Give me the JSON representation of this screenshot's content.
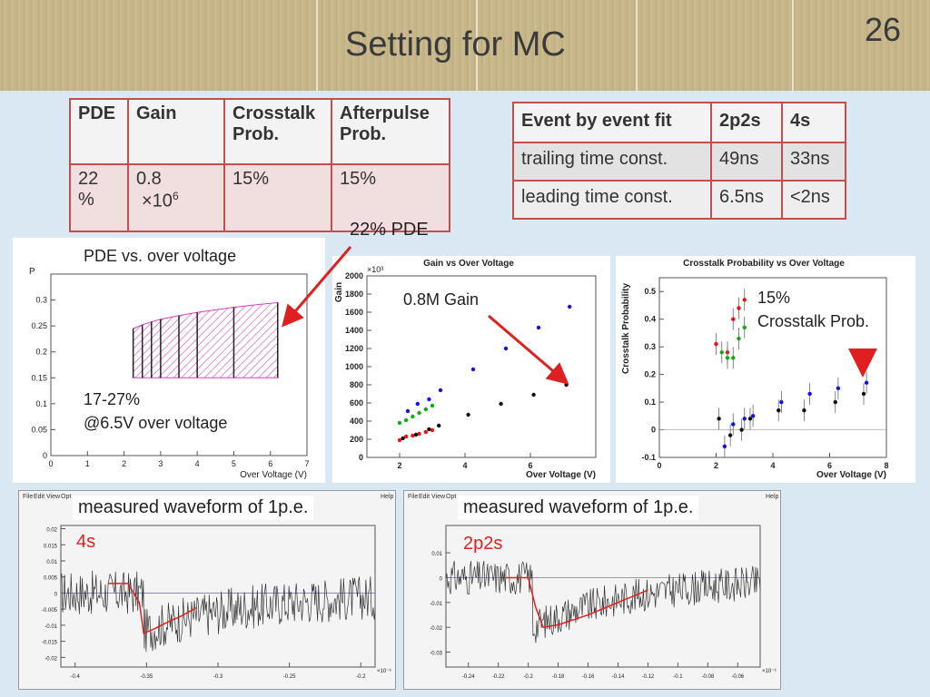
{
  "slide": {
    "title": "Setting for MC",
    "page_number": "26"
  },
  "param_table": {
    "headers": [
      "PDE",
      "Gain",
      "Crosstalk Prob.",
      "Afterpulse Prob."
    ],
    "values": {
      "pde_1": "22",
      "pde_2": "%",
      "gain_1": "0.8",
      "gain_2": "×10",
      "gain_exp": "6",
      "crosstalk": "15%",
      "afterpulse": "15%"
    }
  },
  "fit_table": {
    "headers": [
      "Event by event fit",
      "2p2s",
      "4s"
    ],
    "rows": [
      [
        "trailing time const.",
        "49ns",
        "33ns"
      ],
      [
        "leading time const.",
        "6.5ns",
        "<2ns"
      ]
    ]
  },
  "annotations": {
    "pde_note": "22% PDE",
    "pde_caption": "PDE vs. over voltage",
    "pde_range_1": "17-27%",
    "pde_range_2": "@6.5V over voltage",
    "gain_note": "0.8M Gain",
    "crosstalk_note_1": "15%",
    "crosstalk_note_2": "Crosstalk Prob.",
    "wave1_caption": "measured waveform of 1p.e.",
    "wave1_tag": "4s",
    "wave2_caption": "measured waveform of 1p.e.",
    "wave2_tag": "2p2s"
  },
  "colors": {
    "accent_red": "#e02020",
    "table_border": "#c0504d",
    "pde_hatch": "#d040c0"
  },
  "window_menu": {
    "items": [
      "File",
      "Edit",
      "View",
      "Opt",
      "Help"
    ]
  },
  "chart_data": [
    {
      "type": "scatter",
      "title": "",
      "xlabel": "Over Voltage (V)",
      "ylabel": "P",
      "xlim": [
        0,
        7
      ],
      "ylim": [
        0,
        0.35
      ],
      "xticks": [
        0,
        1,
        2,
        3,
        4,
        5,
        6,
        7
      ],
      "yticks": [
        0,
        0.05,
        0.1,
        0.15,
        0.2,
        0.25,
        0.3
      ],
      "band": {
        "x": [
          2.25,
          2.5,
          2.75,
          3.0,
          3.5,
          4.0,
          4.5,
          5.0,
          5.5,
          6.2
        ],
        "upper": [
          0.245,
          0.252,
          0.258,
          0.263,
          0.27,
          0.276,
          0.281,
          0.286,
          0.29,
          0.295
        ],
        "lower": [
          0.15,
          0.15,
          0.15,
          0.15,
          0.15,
          0.15,
          0.15,
          0.15,
          0.15,
          0.15
        ]
      },
      "verticals": [
        2.25,
        2.5,
        2.75,
        3.0,
        3.5,
        4.0,
        5.0,
        6.2
      ]
    },
    {
      "type": "scatter",
      "title": "Gain vs Over Voltage",
      "xlabel": "Over Voltage (V)",
      "ylabel": "Gain",
      "y_multiplier": "×10³",
      "xlim": [
        1,
        8
      ],
      "ylim": [
        0,
        2000
      ],
      "xticks": [
        2,
        4,
        6
      ],
      "yticks": [
        0,
        200,
        400,
        600,
        800,
        1000,
        1200,
        1400,
        1600,
        1800,
        2000
      ],
      "series": [
        {
          "color": "#ee1111",
          "x": [
            2.0,
            2.2,
            2.4,
            2.6,
            2.8,
            3.0
          ],
          "y": [
            190,
            230,
            240,
            260,
            280,
            300
          ]
        },
        {
          "color": "#11aa11",
          "x": [
            2.0,
            2.2,
            2.4,
            2.6,
            2.8,
            3.0
          ],
          "y": [
            380,
            410,
            450,
            490,
            530,
            570
          ]
        },
        {
          "color": "#1111ee",
          "x": [
            2.25,
            2.55,
            2.9,
            3.25,
            4.25,
            5.25,
            6.25,
            7.2
          ],
          "y": [
            510,
            590,
            640,
            740,
            970,
            1200,
            1430,
            1660
          ]
        },
        {
          "color": "#111111",
          "x": [
            2.1,
            2.5,
            2.9,
            3.2,
            4.1,
            5.1,
            6.1,
            7.1
          ],
          "y": [
            210,
            250,
            310,
            350,
            470,
            590,
            690,
            800
          ]
        }
      ]
    },
    {
      "type": "scatter",
      "title": "Crosstalk Probability vs Over Voltage",
      "xlabel": "Over Voltage (V)",
      "ylabel": "Crosstalk Probability",
      "xlim": [
        0,
        8
      ],
      "ylim": [
        -0.1,
        0.55
      ],
      "xticks": [
        0,
        2,
        4,
        6,
        8
      ],
      "yticks": [
        -0.1,
        0,
        0.1,
        0.2,
        0.3,
        0.4,
        0.5
      ],
      "series": [
        {
          "color": "#ee1111",
          "x": [
            2.0,
            2.4,
            2.6,
            2.8,
            3.0
          ],
          "y": [
            0.31,
            0.28,
            0.4,
            0.44,
            0.47
          ]
        },
        {
          "color": "#11aa11",
          "x": [
            2.2,
            2.4,
            2.6,
            2.8,
            3.0
          ],
          "y": [
            0.28,
            0.26,
            0.26,
            0.33,
            0.37
          ]
        },
        {
          "color": "#1111ee",
          "x": [
            2.3,
            2.6,
            3.0,
            3.3,
            4.3,
            5.3,
            6.3,
            7.3
          ],
          "y": [
            -0.06,
            0.02,
            0.04,
            0.05,
            0.1,
            0.13,
            0.15,
            0.17
          ]
        },
        {
          "color": "#111111",
          "x": [
            2.1,
            2.5,
            2.9,
            3.2,
            4.2,
            5.1,
            6.2,
            7.2
          ],
          "y": [
            0.04,
            -0.02,
            0.0,
            0.04,
            0.07,
            0.07,
            0.1,
            0.13
          ]
        }
      ]
    },
    {
      "type": "line",
      "title": "",
      "xlabel": "",
      "ylabel": "",
      "xlim": [
        -0.41,
        -0.19
      ],
      "ylim": [
        -0.023,
        0.021
      ],
      "x_multiplier": "×10⁻⁶",
      "xticks": [
        -0.4,
        -0.35,
        -0.3,
        -0.25,
        -0.2
      ],
      "yticks": [
        -0.02,
        -0.015,
        -0.01,
        -0.005,
        0,
        0.005,
        0.01,
        0.015,
        0.02
      ],
      "fit": {
        "x": [
          -0.377,
          -0.363,
          -0.355,
          -0.352,
          -0.345,
          -0.335,
          -0.325,
          -0.315
        ],
        "y": [
          0.003,
          0.003,
          -0.003,
          -0.0125,
          -0.0112,
          -0.009,
          -0.007,
          -0.0045
        ]
      }
    },
    {
      "type": "line",
      "title": "",
      "xlabel": "",
      "ylabel": "",
      "xlim": [
        -0.255,
        -0.045
      ],
      "ylim": [
        -0.036,
        0.021
      ],
      "x_multiplier": "×10⁻⁶",
      "xticks": [
        -0.24,
        -0.22,
        -0.2,
        -0.18,
        -0.16,
        -0.14,
        -0.12,
        -0.1,
        -0.08,
        -0.06
      ],
      "yticks": [
        -0.03,
        -0.02,
        -0.01,
        0,
        0.01
      ],
      "fit": {
        "x": [
          -0.215,
          -0.2,
          -0.195,
          -0.19,
          -0.18,
          -0.16,
          -0.14,
          -0.12
        ],
        "y": [
          0.0,
          0.0,
          -0.012,
          -0.02,
          -0.019,
          -0.015,
          -0.01,
          -0.005
        ]
      }
    }
  ]
}
